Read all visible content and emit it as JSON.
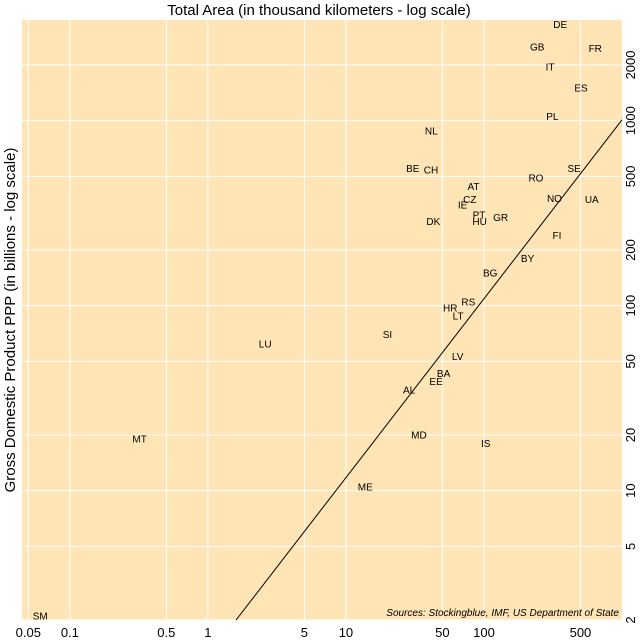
{
  "chart_data": {
    "type": "scatter",
    "title": "Total Area (in thousand kilometers - log scale)",
    "ylabel": "Gross Domestic Product PPP (in billions - log scale)",
    "xscale": "log",
    "yscale": "log",
    "xlim": [
      0.045,
      1000
    ],
    "ylim": [
      2,
      3500
    ],
    "xticks": [
      0.05,
      0.1,
      0.5,
      1,
      5,
      10,
      50,
      100,
      500
    ],
    "xtick_labels": [
      "0.05",
      "0.1",
      "0.5",
      "1",
      "5",
      "10",
      "50",
      "100",
      "500"
    ],
    "yticks": [
      2,
      5,
      10,
      20,
      50,
      100,
      200,
      500,
      1000,
      2000
    ],
    "ytick_labels": [
      "2",
      "5",
      "10",
      "20",
      "50",
      "100",
      "200",
      "500",
      "1000",
      "2000"
    ],
    "grid": true,
    "background": "#ffe4b5",
    "points": [
      {
        "label": "DE",
        "x": 357,
        "y": 3300
      },
      {
        "label": "GB",
        "x": 243,
        "y": 2500
      },
      {
        "label": "FR",
        "x": 640,
        "y": 2450
      },
      {
        "label": "IT",
        "x": 301,
        "y": 1950
      },
      {
        "label": "ES",
        "x": 505,
        "y": 1500
      },
      {
        "label": "PL",
        "x": 313,
        "y": 1050
      },
      {
        "label": "NL",
        "x": 41.5,
        "y": 880
      },
      {
        "label": "BE",
        "x": 30.5,
        "y": 550
      },
      {
        "label": "CH",
        "x": 41.3,
        "y": 540
      },
      {
        "label": "SE",
        "x": 450,
        "y": 550
      },
      {
        "label": "RO",
        "x": 238,
        "y": 490
      },
      {
        "label": "AT",
        "x": 84,
        "y": 440
      },
      {
        "label": "NO",
        "x": 324,
        "y": 380
      },
      {
        "label": "UA",
        "x": 604,
        "y": 375
      },
      {
        "label": "CZ",
        "x": 79,
        "y": 375
      },
      {
        "label": "IE",
        "x": 70,
        "y": 350
      },
      {
        "label": "PT",
        "x": 92,
        "y": 310
      },
      {
        "label": "GR",
        "x": 132,
        "y": 300
      },
      {
        "label": "DK",
        "x": 43,
        "y": 285
      },
      {
        "label": "HU",
        "x": 93,
        "y": 285
      },
      {
        "label": "FI",
        "x": 338,
        "y": 240
      },
      {
        "label": "BY",
        "x": 207,
        "y": 180
      },
      {
        "label": "BG",
        "x": 111,
        "y": 150
      },
      {
        "label": "RS",
        "x": 77,
        "y": 105
      },
      {
        "label": "HR",
        "x": 57,
        "y": 97
      },
      {
        "label": "LT",
        "x": 65,
        "y": 88
      },
      {
        "label": "SI",
        "x": 20,
        "y": 70
      },
      {
        "label": "LU",
        "x": 2.6,
        "y": 62
      },
      {
        "label": "LV",
        "x": 64.5,
        "y": 53
      },
      {
        "label": "BA",
        "x": 51,
        "y": 43
      },
      {
        "label": "EE",
        "x": 45,
        "y": 39
      },
      {
        "label": "AL",
        "x": 28.7,
        "y": 35
      },
      {
        "label": "MD",
        "x": 33.8,
        "y": 20
      },
      {
        "label": "IS",
        "x": 103,
        "y": 18
      },
      {
        "label": "MT",
        "x": 0.32,
        "y": 19
      },
      {
        "label": "ME",
        "x": 13.8,
        "y": 10.5
      },
      {
        "label": "SM",
        "x": 0.061,
        "y": 2.1
      }
    ],
    "trendline": {
      "x": [
        1.6,
        1000
      ],
      "y": [
        2,
        1010
      ]
    }
  },
  "source": "Sources: Stockingblue, IMF, US Department of State"
}
